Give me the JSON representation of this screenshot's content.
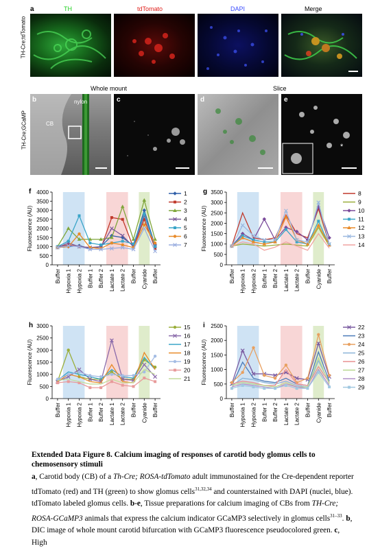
{
  "figure": {
    "row_top_label": "TH-Cre;tdTomato",
    "row_mid_label": "TH-Cre;GCaMP",
    "panel_a": {
      "letter": "a",
      "channels": [
        "TH",
        "tdTomato",
        "DAPI",
        "Merge"
      ],
      "colors": [
        "#22d022",
        "#e0201c",
        "#3a4cff",
        "#000000"
      ]
    },
    "panel_b": {
      "letter": "b",
      "header": "Whole mount",
      "labels": [
        "nylon",
        "CB"
      ]
    },
    "panel_c": {
      "letter": "c"
    },
    "panel_d": {
      "letter": "d",
      "header": "Slice"
    },
    "panel_e": {
      "letter": "e",
      "mark": "*"
    }
  },
  "chart_data": [
    {
      "letter": "f",
      "type": "line",
      "ylabel": "Fluorescence (AU)",
      "ylim": [
        0,
        4000
      ],
      "yticks": [
        "0",
        "500",
        "1000",
        "1500",
        "2000",
        "2500",
        "3000",
        "3500",
        "4000"
      ],
      "categories": [
        "Buffer",
        "Hypoxia 1",
        "Hypoxia 2",
        "Buffer 1",
        "Buffer 2",
        "Lactate 1",
        "Lactate 2",
        "Buffer",
        "Cyanide",
        "Buffer"
      ],
      "bands": [
        {
          "from": 1,
          "to": 2,
          "color": "#cfe3f4"
        },
        {
          "from": 5,
          "to": 6,
          "color": "#f8d6d6"
        },
        {
          "from": 8,
          "to": 8,
          "color": "#dfeccb"
        }
      ],
      "series": [
        {
          "name": "1",
          "color": "#2f5fa8",
          "marker": "diamond",
          "values": [
            950,
            1000,
            1050,
            900,
            1000,
            1600,
            1500,
            1050,
            3000,
            1050
          ]
        },
        {
          "name": "2",
          "color": "#c0392b",
          "marker": "square",
          "values": [
            1000,
            1100,
            1000,
            950,
            900,
            2600,
            2500,
            950,
            2500,
            900
          ]
        },
        {
          "name": "3",
          "color": "#7fa63a",
          "marker": "triangle",
          "values": [
            1000,
            2000,
            1400,
            1400,
            1400,
            1500,
            3200,
            1400,
            3550,
            1400
          ]
        },
        {
          "name": "4",
          "color": "#7a5a9a",
          "marker": "x",
          "values": [
            950,
            1200,
            1000,
            950,
            1000,
            2000,
            1600,
            1000,
            2700,
            1050
          ]
        },
        {
          "name": "5",
          "color": "#3aa5c8",
          "marker": "square",
          "values": [
            1000,
            1300,
            2700,
            1200,
            1100,
            1200,
            1300,
            1150,
            2800,
            1000
          ]
        },
        {
          "name": "6",
          "color": "#e88a28",
          "marker": "circle",
          "values": [
            950,
            1000,
            1700,
            950,
            900,
            1200,
            1100,
            950,
            2200,
            1200
          ]
        },
        {
          "name": "7",
          "color": "#9aaee0",
          "marker": "x",
          "values": [
            950,
            1050,
            1000,
            850,
            850,
            900,
            950,
            850,
            2000,
            750
          ]
        }
      ]
    },
    {
      "letter": "g",
      "type": "line",
      "ylabel": "Fluorescence (AU)",
      "ylim": [
        0,
        3500
      ],
      "yticks": [
        "0",
        "500",
        "1000",
        "1500",
        "2000",
        "2500",
        "3000",
        "3500"
      ],
      "categories": [
        "Buffer",
        "Hypoxia 1",
        "Hypoxia 2",
        "Buffer 1",
        "Buffer 2",
        "Lactate 1",
        "Lactate 2",
        "Buffer",
        "Cyanide",
        "Buffer"
      ],
      "bands": [
        {
          "from": 1,
          "to": 2,
          "color": "#cfe3f4"
        },
        {
          "from": 5,
          "to": 6,
          "color": "#f8d6d6"
        },
        {
          "from": 8,
          "to": 8,
          "color": "#dfeccb"
        }
      ],
      "series": [
        {
          "name": "8",
          "color": "#c0392b",
          "marker": "none",
          "values": [
            900,
            2500,
            1300,
            1200,
            1300,
            2400,
            1500,
            1300,
            2700,
            1000
          ]
        },
        {
          "name": "9",
          "color": "#9aae3a",
          "marker": "none",
          "values": [
            900,
            1000,
            950,
            900,
            950,
            1000,
            950,
            900,
            1800,
            900
          ]
        },
        {
          "name": "10",
          "color": "#7a4a9a",
          "marker": "diamond",
          "values": [
            900,
            1500,
            1200,
            2200,
            1200,
            1800,
            1600,
            1200,
            2800,
            1300
          ]
        },
        {
          "name": "11",
          "color": "#3aa5c8",
          "marker": "square",
          "values": [
            900,
            1400,
            1200,
            1100,
            1100,
            1700,
            1100,
            1000,
            2100,
            950
          ]
        },
        {
          "name": "12",
          "color": "#e88a28",
          "marker": "triangle",
          "values": [
            900,
            1300,
            1100,
            1000,
            1100,
            2300,
            1200,
            1000,
            1900,
            950
          ]
        },
        {
          "name": "13",
          "color": "#9ab8e0",
          "marker": "x",
          "values": [
            900,
            1900,
            1400,
            1200,
            1200,
            2600,
            1200,
            1100,
            3000,
            1000
          ]
        },
        {
          "name": "14",
          "color": "#f0a4a0",
          "marker": "none",
          "values": [
            900,
            1100,
            1000,
            700,
            850,
            1100,
            900,
            700,
            1500,
            800
          ]
        }
      ]
    },
    {
      "letter": "h",
      "type": "line",
      "ylabel": "Fluorescence (AU)",
      "ylim": [
        0,
        3000
      ],
      "yticks": [
        "0",
        "500",
        "1000",
        "1500",
        "2000",
        "2500",
        "3000"
      ],
      "categories": [
        "Buffer",
        "Hypoxia 1",
        "Hypoxia 2",
        "Buffer 1",
        "Buffer 2",
        "Lactate 1",
        "Lactate 2",
        "Buffer",
        "Cyanide",
        "Buffer"
      ],
      "bands": [
        {
          "from": 1,
          "to": 2,
          "color": "#cfe3f4"
        },
        {
          "from": 5,
          "to": 6,
          "color": "#f8d6d6"
        },
        {
          "from": 8,
          "to": 8,
          "color": "#dfeccb"
        }
      ],
      "series": [
        {
          "name": "15",
          "color": "#9aae3a",
          "marker": "circle",
          "values": [
            700,
            2000,
            900,
            800,
            800,
            1100,
            800,
            800,
            1600,
            1300
          ]
        },
        {
          "name": "16",
          "color": "#8a6aaa",
          "marker": "x",
          "values": [
            700,
            900,
            1200,
            800,
            700,
            2400,
            800,
            750,
            1400,
            900
          ]
        },
        {
          "name": "17",
          "color": "#3aa5c8",
          "marker": "none",
          "values": [
            750,
            1100,
            1000,
            900,
            800,
            1200,
            900,
            850,
            1700,
            1200
          ]
        },
        {
          "name": "18",
          "color": "#e88a28",
          "marker": "none",
          "values": [
            700,
            1000,
            900,
            700,
            650,
            1400,
            700,
            650,
            1900,
            1200
          ]
        },
        {
          "name": "19",
          "color": "#a4bce4",
          "marker": "circle",
          "values": [
            800,
            1000,
            1100,
            950,
            900,
            1000,
            950,
            950,
            1100,
            1750
          ]
        },
        {
          "name": "20",
          "color": "#e89a9a",
          "marker": "square",
          "values": [
            650,
            700,
            650,
            450,
            450,
            700,
            550,
            500,
            850,
            700
          ]
        },
        {
          "name": "21",
          "color": "#c4dc9a",
          "marker": "none",
          "values": [
            750,
            800,
            700,
            600,
            600,
            800,
            650,
            650,
            1200,
            1000
          ]
        }
      ]
    },
    {
      "letter": "i",
      "type": "line",
      "ylabel": "Fluorescence (AU)",
      "ylim": [
        0,
        2500
      ],
      "yticks": [
        "0",
        "500",
        "1000",
        "1500",
        "2000",
        "2500"
      ],
      "categories": [
        "Buffer",
        "Hypoxia 1",
        "Hypoxia 2",
        "Buffer 1",
        "Buffer 2",
        "Lactate 1",
        "Lactate 2",
        "Buffer",
        "Cyanide",
        "Buffer"
      ],
      "bands": [
        {
          "from": 1,
          "to": 2,
          "color": "#cfe3f4"
        },
        {
          "from": 5,
          "to": 6,
          "color": "#f8d6d6"
        },
        {
          "from": 8,
          "to": 8,
          "color": "#dfeccb"
        }
      ],
      "series": [
        {
          "name": "22",
          "color": "#7a5aa0",
          "marker": "x",
          "values": [
            500,
            1650,
            850,
            850,
            800,
            900,
            700,
            650,
            1900,
            750
          ]
        },
        {
          "name": "23",
          "color": "#4a7ab8",
          "marker": "none",
          "values": [
            450,
            1250,
            700,
            600,
            550,
            700,
            500,
            450,
            1600,
            600
          ]
        },
        {
          "name": "24",
          "color": "#e8a060",
          "marker": "circle",
          "values": [
            550,
            900,
            1750,
            800,
            700,
            1150,
            550,
            700,
            2200,
            800
          ]
        },
        {
          "name": "25",
          "color": "#8ab4d8",
          "marker": "none",
          "values": [
            450,
            700,
            650,
            550,
            500,
            600,
            450,
            400,
            1300,
            550
          ]
        },
        {
          "name": "26",
          "color": "#e89090",
          "marker": "none",
          "values": [
            500,
            600,
            550,
            450,
            450,
            1000,
            500,
            450,
            1100,
            550
          ]
        },
        {
          "name": "27",
          "color": "#b8d890",
          "marker": "none",
          "values": [
            450,
            550,
            500,
            450,
            400,
            550,
            400,
            400,
            1400,
            500
          ]
        },
        {
          "name": "28",
          "color": "#b090c8",
          "marker": "none",
          "values": [
            400,
            500,
            450,
            400,
            350,
            500,
            400,
            350,
            1000,
            450
          ]
        },
        {
          "name": "29",
          "color": "#a0c8e0",
          "marker": "square",
          "values": [
            350,
            450,
            400,
            350,
            350,
            450,
            350,
            350,
            900,
            400
          ]
        }
      ]
    }
  ],
  "caption": {
    "title": "Extended Data Figure 8. Calcium imaging of responses of carotid body glomus cells to chemosensory stimuli",
    "l1_bold": "a",
    "l1_a": ", Carotid body (CB) of a ",
    "l1_i": "Th-Cre; ROSA-tdTomato",
    "l1_b": " adult immunostained for the Cre-dependent reporter tdTomato (red) and TH (green) to show glomus cells",
    "l1_sup": "31,32,34",
    "l1_c": " and counterstained with DAPI (nuclei, blue). tdTomato labeled glomus cells. ",
    "l2_bold": "b-e",
    "l2_a": ", Tissue preparations for calcium imaging of CBs from ",
    "l2_i": "TH-Cre; ROSA-GCaMP3",
    "l2_b": " animals that express the calcium indicator GCaMP3 selectively in glomus cells",
    "l2_sup": "31–33",
    "l2_c": ". ",
    "l3_bold": "b",
    "l3_a": ", DIC image of whole mount carotid bifurcation with GCaMP3 fluorescence pseudocolored green. ",
    "l4_bold": "c",
    "l4_a": ", High"
  }
}
